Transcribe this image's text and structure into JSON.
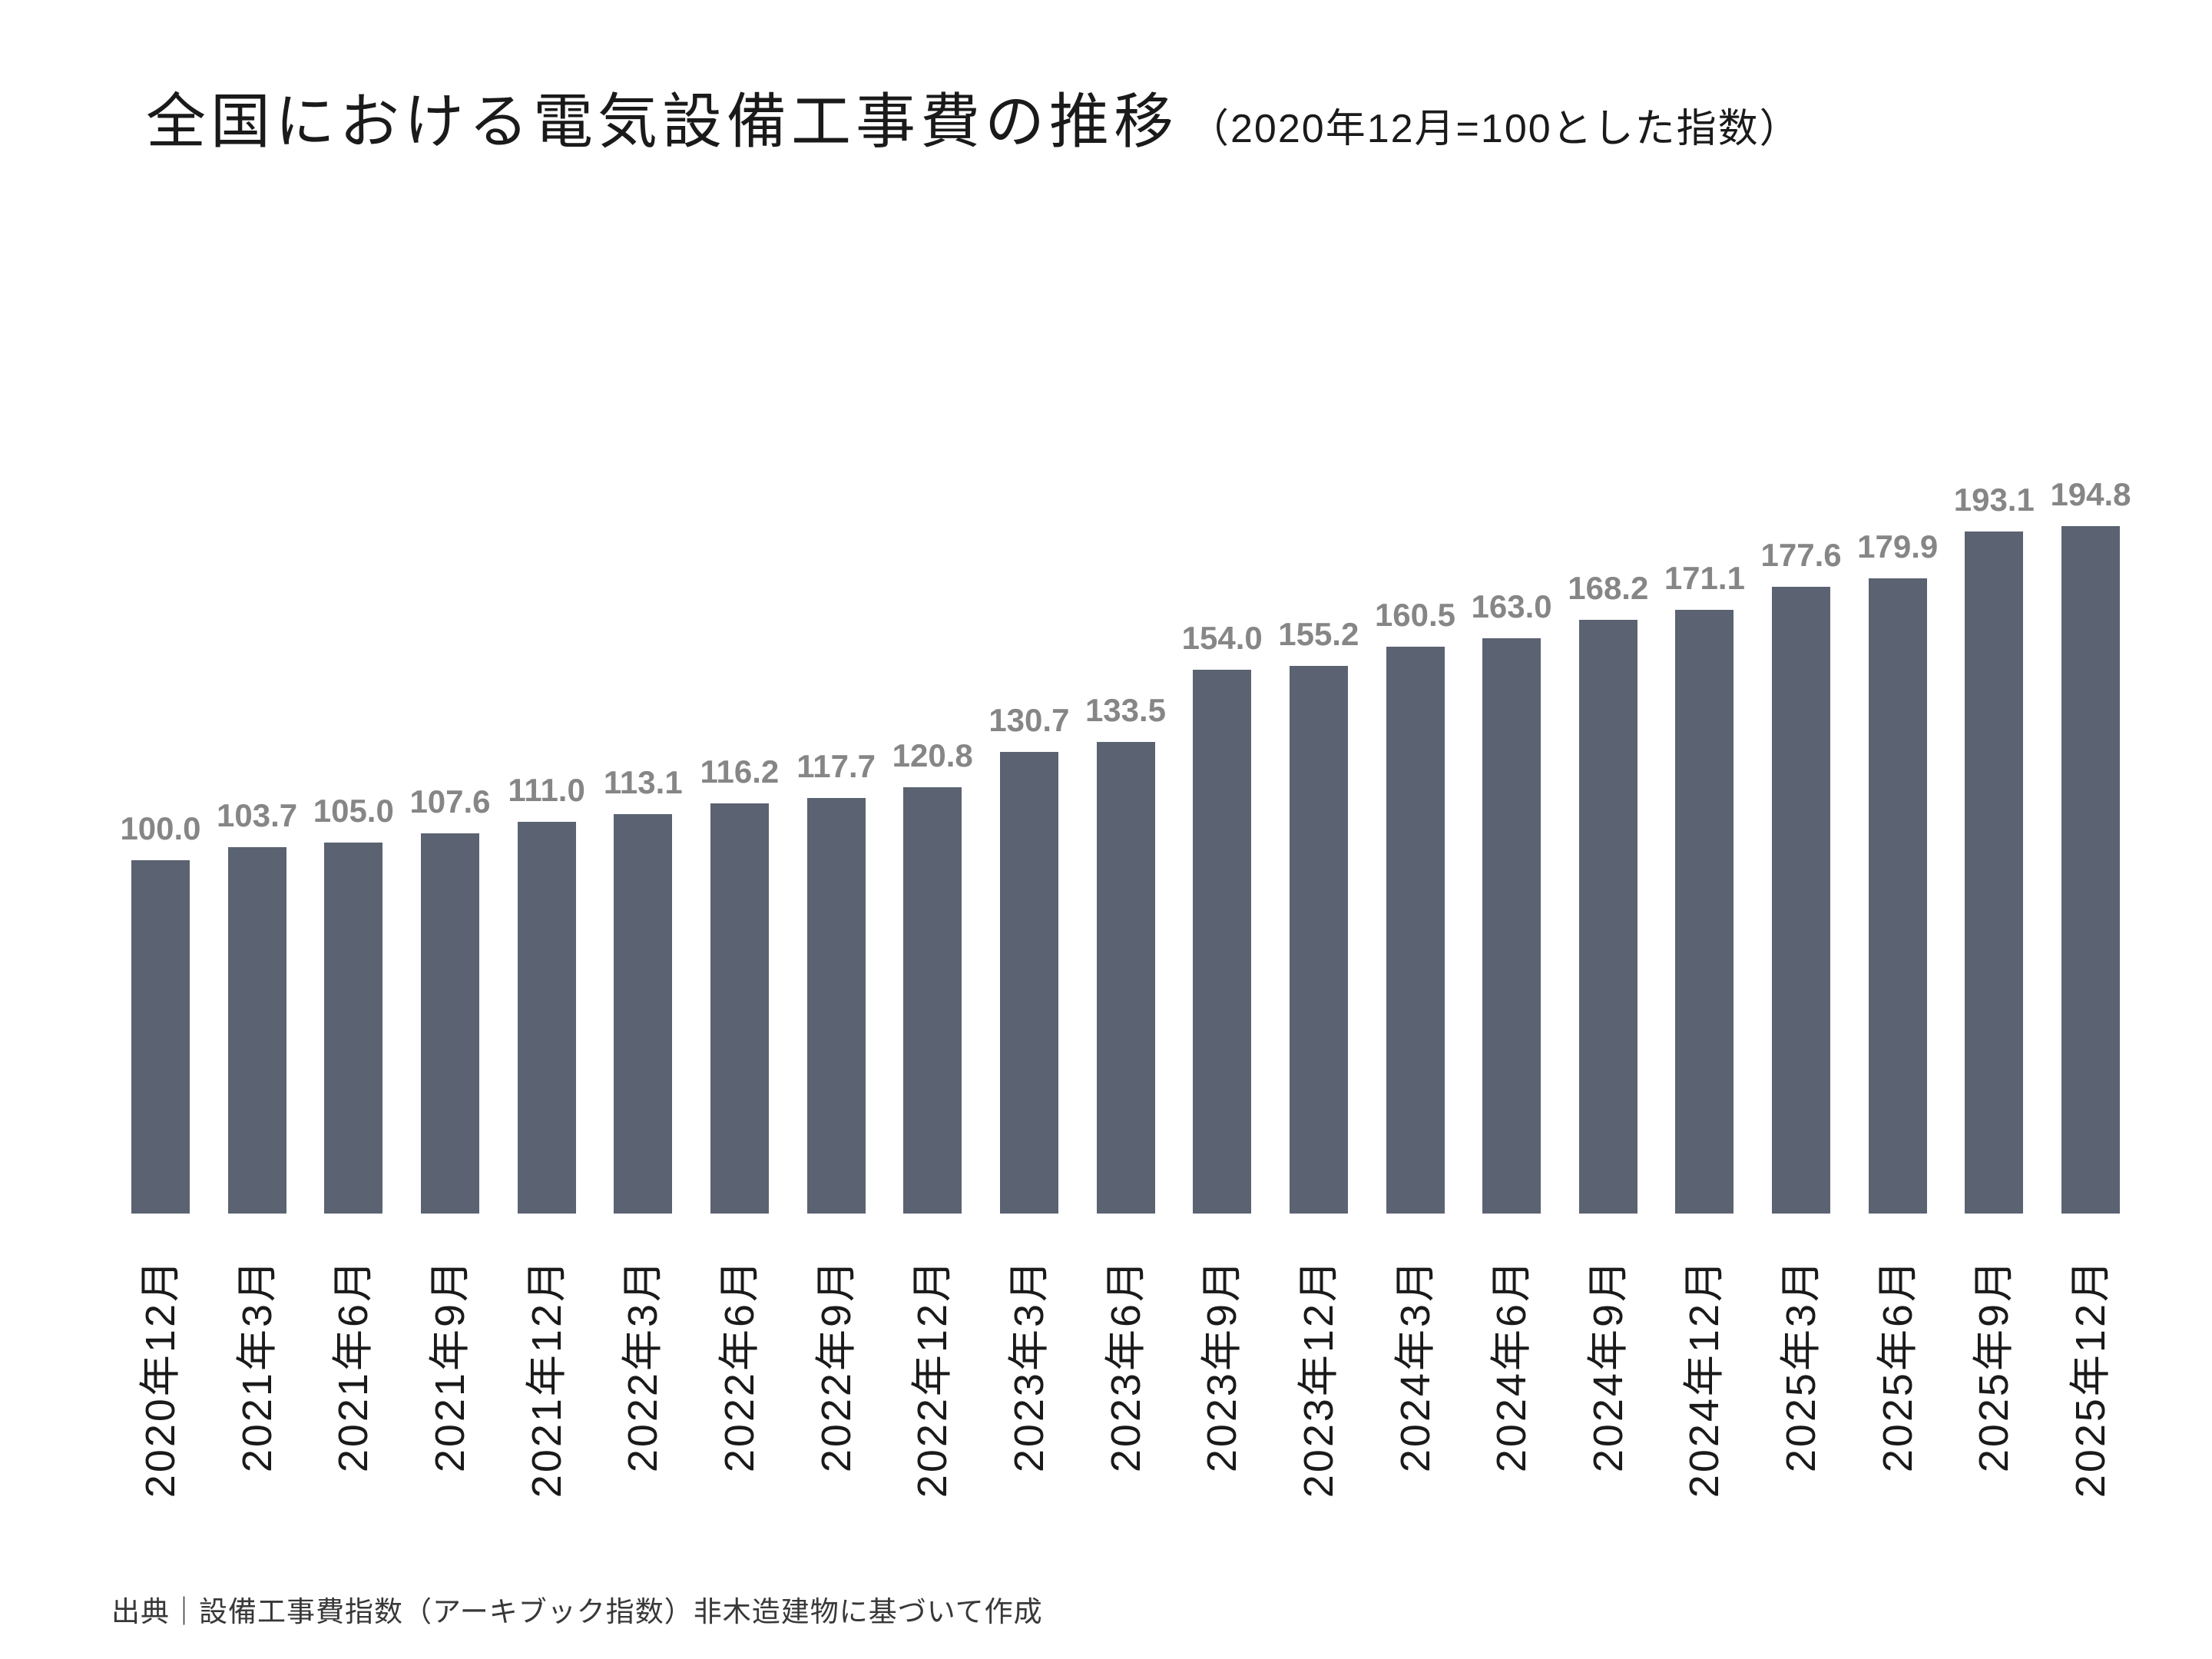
{
  "title": {
    "main": "全国における電気設備工事費の推移",
    "sub": "（2020年12月=100とした指数）"
  },
  "source_note": "出典｜設備工事費指数（アーキブック指数）非木造建物に基づいて作成",
  "colors": {
    "bar": "#5b6372",
    "data_label": "#868686",
    "title_text": "#1a1a1a",
    "axis_label_text": "#1a1a1a",
    "source_text": "#383838",
    "background": "#ffffff"
  },
  "chart_data": {
    "type": "bar",
    "title": "全国における電気設備工事費の推移（2020年12月=100とした指数）",
    "xlabel": "",
    "ylabel": "",
    "ylim": [
      0,
      210
    ],
    "grid": false,
    "legend": false,
    "data_labels_shown": true,
    "axis_lines_shown": false,
    "base_index_note": "2020年12月=100",
    "categories": [
      "2020年12月",
      "2021年3月",
      "2021年6月",
      "2021年9月",
      "2021年12月",
      "2022年3月",
      "2022年6月",
      "2022年9月",
      "2022年12月",
      "2023年3月",
      "2023年6月",
      "2023年9月",
      "2023年12月",
      "2024年3月",
      "2024年6月",
      "2024年9月",
      "2024年12月",
      "2025年3月",
      "2025年6月",
      "2025年9月",
      "2025年12月"
    ],
    "values": [
      100.0,
      103.7,
      105.0,
      107.6,
      111.0,
      113.1,
      116.2,
      117.7,
      120.8,
      130.7,
      133.5,
      154.0,
      155.2,
      160.5,
      163.0,
      168.2,
      171.1,
      177.6,
      179.9,
      193.1,
      194.8
    ]
  }
}
